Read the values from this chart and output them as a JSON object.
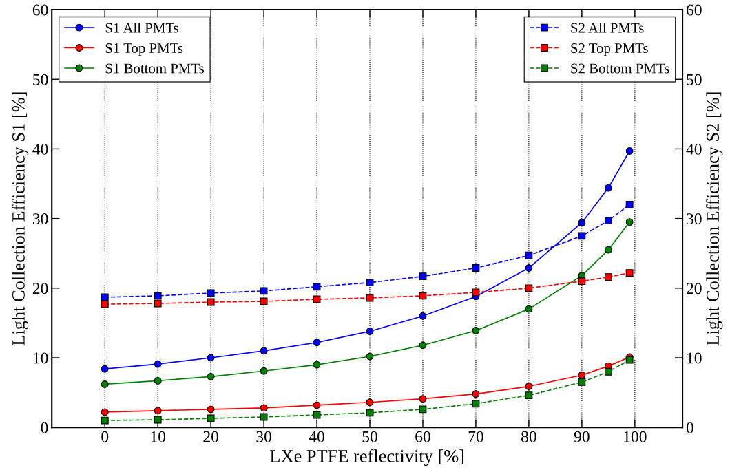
{
  "chart_data": {
    "type": "line",
    "xlabel": "LXe PTFE reflectivity [%]",
    "ylabel": "Light Collection Efficiency S1 [%]",
    "y2label": "Light Collection Efficiency S2 [%]",
    "x": [
      0,
      10,
      20,
      30,
      40,
      50,
      60,
      70,
      80,
      90,
      95,
      99
    ],
    "xlim": [
      -10,
      109
    ],
    "xticks": [
      0,
      10,
      20,
      30,
      40,
      50,
      60,
      70,
      80,
      90,
      100
    ],
    "ylim": [
      0,
      60
    ],
    "yticks": [
      0,
      10,
      20,
      30,
      40,
      50,
      60
    ],
    "y2lim": [
      0,
      60
    ],
    "y2ticks": [
      0,
      10,
      20,
      30,
      40,
      50,
      60
    ],
    "grid": "x",
    "legend": "top",
    "series": [
      {
        "name": "S1 All PMTs",
        "color": "#0000ff",
        "marker": "circle",
        "line_style": "solid",
        "values": [
          8.4,
          9.1,
          10.0,
          11.0,
          12.2,
          13.8,
          16.0,
          18.8,
          22.9,
          29.4,
          34.4,
          39.7
        ]
      },
      {
        "name": "S1 Top PMTs",
        "color": "#ff0000",
        "marker": "circle",
        "line_style": "solid",
        "values": [
          2.2,
          2.4,
          2.6,
          2.8,
          3.2,
          3.6,
          4.1,
          4.8,
          5.9,
          7.5,
          8.8,
          10.1
        ]
      },
      {
        "name": "S1 Bottom PMTs",
        "color": "#008000",
        "marker": "circle",
        "line_style": "solid",
        "values": [
          6.2,
          6.7,
          7.3,
          8.1,
          9.0,
          10.2,
          11.8,
          13.9,
          17.0,
          21.8,
          25.5,
          29.5
        ]
      },
      {
        "name": "S2 All PMTs",
        "color": "#0000ff",
        "marker": "square",
        "line_style": "dashed",
        "axis": "y2",
        "values": [
          18.7,
          18.9,
          19.3,
          19.6,
          20.2,
          20.8,
          21.7,
          22.9,
          24.7,
          27.5,
          29.7,
          32.0
        ]
      },
      {
        "name": "S2 Top PMTs",
        "color": "#ff0000",
        "marker": "square",
        "line_style": "dashed",
        "axis": "y2",
        "values": [
          17.7,
          17.8,
          18.0,
          18.1,
          18.4,
          18.6,
          18.9,
          19.4,
          20.0,
          21.0,
          21.6,
          22.2
        ]
      },
      {
        "name": "S2 Bottom PMTs",
        "color": "#008000",
        "marker": "square",
        "line_style": "dashed",
        "axis": "y2",
        "values": [
          1.0,
          1.1,
          1.3,
          1.5,
          1.8,
          2.1,
          2.6,
          3.4,
          4.6,
          6.5,
          8.0,
          9.7
        ]
      }
    ]
  }
}
